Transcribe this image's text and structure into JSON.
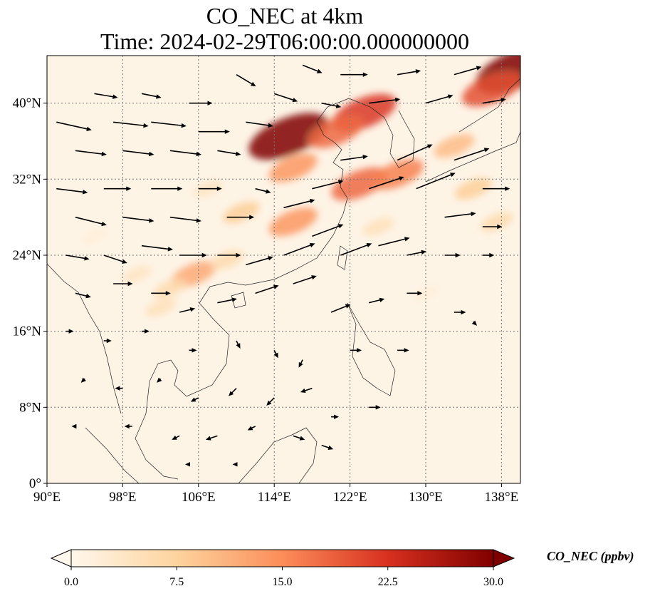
{
  "chart_data": {
    "type": "heatmap",
    "title": "CO_NEC at 4km",
    "subtitle": "Time: 2024-02-29T06:00:00.000000000",
    "variable": "CO_NEC",
    "colorbar_label": "CO_NEC (ppbv)",
    "colormap": "OrRd",
    "colorbar_ticks": [
      "0.0",
      "7.5",
      "15.0",
      "22.5",
      "30.0"
    ],
    "color_range": [
      0,
      30
    ],
    "colorbar_extend": "both",
    "x_range": [
      90,
      140
    ],
    "y_range": [
      0,
      45
    ],
    "x_ticks": [
      {
        "value": 90,
        "label": "90°E"
      },
      {
        "value": 98,
        "label": "98°E"
      },
      {
        "value": 106,
        "label": "106°E"
      },
      {
        "value": 114,
        "label": "114°E"
      },
      {
        "value": 122,
        "label": "122°E"
      },
      {
        "value": 130,
        "label": "130°E"
      },
      {
        "value": 138,
        "label": "138°E"
      }
    ],
    "y_ticks": [
      {
        "value": 0,
        "label": "0°"
      },
      {
        "value": 8,
        "label": "8°N"
      },
      {
        "value": 16,
        "label": "16°N"
      },
      {
        "value": 24,
        "label": "24°N"
      },
      {
        "value": 32,
        "label": "32°N"
      },
      {
        "value": 40,
        "label": "40°N"
      }
    ],
    "grid": true,
    "overlay": "wind vectors",
    "concentration_features": [
      {
        "lon": 115.5,
        "lat": 36.5,
        "value": 30
      },
      {
        "lon": 123.5,
        "lat": 39.0,
        "value": 22
      },
      {
        "lon": 120.5,
        "lat": 37.0,
        "value": 18
      },
      {
        "lon": 116.0,
        "lat": 33.2,
        "value": 14
      },
      {
        "lon": 123.0,
        "lat": 31.5,
        "value": 18
      },
      {
        "lon": 127.0,
        "lat": 32.5,
        "value": 16
      },
      {
        "lon": 116.0,
        "lat": 27.5,
        "value": 14
      },
      {
        "lon": 110.5,
        "lat": 28.5,
        "value": 8
      },
      {
        "lon": 105.5,
        "lat": 22.0,
        "value": 12
      },
      {
        "lon": 103.0,
        "lat": 20.5,
        "value": 6
      },
      {
        "lon": 109.0,
        "lat": 23.5,
        "value": 6
      },
      {
        "lon": 102.0,
        "lat": 18.5,
        "value": 5
      },
      {
        "lon": 99.5,
        "lat": 22.0,
        "value": 4
      },
      {
        "lon": 139.5,
        "lat": 43.5,
        "value": 30
      },
      {
        "lon": 137.0,
        "lat": 41.5,
        "value": 20
      },
      {
        "lon": 133.0,
        "lat": 35.5,
        "value": 10
      },
      {
        "lon": 135.0,
        "lat": 31.0,
        "value": 8
      },
      {
        "lon": 125.0,
        "lat": 27.0,
        "value": 5
      },
      {
        "lon": 137.5,
        "lat": 27.5,
        "value": 6
      },
      {
        "lon": 107.0,
        "lat": 31.0,
        "value": 4
      },
      {
        "lon": 95.0,
        "lat": 26.0,
        "value": 2
      },
      {
        "lon": 130.0,
        "lat": 20.0,
        "value": 2
      }
    ],
    "wind_vectors": [
      {
        "lon": 91,
        "lat": 38,
        "u": 9,
        "v": -2
      },
      {
        "lon": 93,
        "lat": 35,
        "u": 8,
        "v": -1
      },
      {
        "lon": 95,
        "lat": 41,
        "u": 6,
        "v": -1
      },
      {
        "lon": 97,
        "lat": 38,
        "u": 9,
        "v": -1
      },
      {
        "lon": 98,
        "lat": 35,
        "u": 8,
        "v": -1
      },
      {
        "lon": 100,
        "lat": 41,
        "u": 5,
        "v": -1
      },
      {
        "lon": 101,
        "lat": 38,
        "u": 9,
        "v": -1
      },
      {
        "lon": 103,
        "lat": 35,
        "u": 8,
        "v": -1
      },
      {
        "lon": 105,
        "lat": 40,
        "u": 6,
        "v": 0
      },
      {
        "lon": 106,
        "lat": 37,
        "u": 8,
        "v": 0
      },
      {
        "lon": 108,
        "lat": 35,
        "u": 6,
        "v": -1
      },
      {
        "lon": 110,
        "lat": 43,
        "u": 5,
        "v": -3
      },
      {
        "lon": 111,
        "lat": 38,
        "u": 7,
        "v": -1
      },
      {
        "lon": 114,
        "lat": 41,
        "u": 6,
        "v": -2
      },
      {
        "lon": 117,
        "lat": 44,
        "u": 5,
        "v": -2
      },
      {
        "lon": 119,
        "lat": 40,
        "u": 5,
        "v": -1
      },
      {
        "lon": 121,
        "lat": 43,
        "u": 7,
        "v": 0
      },
      {
        "lon": 124,
        "lat": 40,
        "u": 8,
        "v": 1
      },
      {
        "lon": 127,
        "lat": 43,
        "u": 6,
        "v": 1
      },
      {
        "lon": 130,
        "lat": 40,
        "u": 7,
        "v": 2
      },
      {
        "lon": 133,
        "lat": 43,
        "u": 7,
        "v": 2
      },
      {
        "lon": 136,
        "lat": 40,
        "u": 6,
        "v": 1
      },
      {
        "lon": 91,
        "lat": 31,
        "u": 8,
        "v": -1
      },
      {
        "lon": 93,
        "lat": 28,
        "u": 8,
        "v": -2
      },
      {
        "lon": 96,
        "lat": 31,
        "u": 7,
        "v": 0
      },
      {
        "lon": 98,
        "lat": 28,
        "u": 8,
        "v": -1
      },
      {
        "lon": 101,
        "lat": 31,
        "u": 8,
        "v": 0
      },
      {
        "lon": 103,
        "lat": 28,
        "u": 8,
        "v": -1
      },
      {
        "lon": 106,
        "lat": 31,
        "u": 6,
        "v": 0
      },
      {
        "lon": 109,
        "lat": 28,
        "u": 7,
        "v": 0
      },
      {
        "lon": 112,
        "lat": 31,
        "u": 4,
        "v": -1
      },
      {
        "lon": 115,
        "lat": 29,
        "u": 8,
        "v": 2
      },
      {
        "lon": 118,
        "lat": 31,
        "u": 8,
        "v": 2
      },
      {
        "lon": 121,
        "lat": 34,
        "u": 7,
        "v": 1
      },
      {
        "lon": 124,
        "lat": 31,
        "u": 9,
        "v": 3
      },
      {
        "lon": 127,
        "lat": 34,
        "u": 9,
        "v": 4
      },
      {
        "lon": 129,
        "lat": 31,
        "u": 10,
        "v": 4
      },
      {
        "lon": 133,
        "lat": 34,
        "u": 9,
        "v": 3
      },
      {
        "lon": 136,
        "lat": 31,
        "u": 7,
        "v": 0
      },
      {
        "lon": 132,
        "lat": 28,
        "u": 8,
        "v": 1
      },
      {
        "lon": 136,
        "lat": 27,
        "u": 5,
        "v": 0
      },
      {
        "lon": 92,
        "lat": 24,
        "u": 6,
        "v": -1
      },
      {
        "lon": 96,
        "lat": 24,
        "u": 6,
        "v": -2
      },
      {
        "lon": 100,
        "lat": 25,
        "u": 8,
        "v": -1
      },
      {
        "lon": 104,
        "lat": 24,
        "u": 7,
        "v": 0
      },
      {
        "lon": 108,
        "lat": 24,
        "u": 6,
        "v": 0
      },
      {
        "lon": 111,
        "lat": 23,
        "u": 7,
        "v": 2
      },
      {
        "lon": 115,
        "lat": 24,
        "u": 8,
        "v": 3
      },
      {
        "lon": 118,
        "lat": 26,
        "u": 8,
        "v": 3
      },
      {
        "lon": 121,
        "lat": 24,
        "u": 8,
        "v": 3
      },
      {
        "lon": 125,
        "lat": 25,
        "u": 8,
        "v": 2
      },
      {
        "lon": 128,
        "lat": 24,
        "u": 5,
        "v": 1
      },
      {
        "lon": 132,
        "lat": 24,
        "u": 4,
        "v": 0
      },
      {
        "lon": 136,
        "lat": 24,
        "u": 3,
        "v": 0
      },
      {
        "lon": 93,
        "lat": 20,
        "u": 4,
        "v": -1
      },
      {
        "lon": 97,
        "lat": 21,
        "u": 5,
        "v": 0
      },
      {
        "lon": 101,
        "lat": 20,
        "u": 5,
        "v": 0
      },
      {
        "lon": 104,
        "lat": 18,
        "u": 4,
        "v": 1
      },
      {
        "lon": 108,
        "lat": 19,
        "u": 5,
        "v": 1
      },
      {
        "lon": 112,
        "lat": 20,
        "u": 6,
        "v": 2
      },
      {
        "lon": 116,
        "lat": 21,
        "u": 6,
        "v": 2
      },
      {
        "lon": 120,
        "lat": 18,
        "u": 5,
        "v": 2
      },
      {
        "lon": 124,
        "lat": 19,
        "u": 4,
        "v": 1
      },
      {
        "lon": 128,
        "lat": 20,
        "u": 4,
        "v": 0
      },
      {
        "lon": 133,
        "lat": 18,
        "u": 3,
        "v": 0
      },
      {
        "lon": 135,
        "lat": 17,
        "u": 1,
        "v": -1
      },
      {
        "lon": 92,
        "lat": 16,
        "u": 2,
        "v": 0
      },
      {
        "lon": 96,
        "lat": 15,
        "u": 2,
        "v": 0
      },
      {
        "lon": 100,
        "lat": 16,
        "u": 2,
        "v": 0
      },
      {
        "lon": 105,
        "lat": 14,
        "u": 2,
        "v": 0
      },
      {
        "lon": 110,
        "lat": 15,
        "u": 1,
        "v": -2
      },
      {
        "lon": 114,
        "lat": 14,
        "u": 1,
        "v": -2
      },
      {
        "lon": 117,
        "lat": 13,
        "u": -1,
        "v": -2
      },
      {
        "lon": 122,
        "lat": 14,
        "u": 3,
        "v": 0
      },
      {
        "lon": 127,
        "lat": 14,
        "u": 3,
        "v": 0
      },
      {
        "lon": 94,
        "lat": 11,
        "u": -1,
        "v": -1
      },
      {
        "lon": 98,
        "lat": 10,
        "u": -2,
        "v": 0
      },
      {
        "lon": 102,
        "lat": 11,
        "u": -1,
        "v": -1
      },
      {
        "lon": 106,
        "lat": 9,
        "u": -2,
        "v": -1
      },
      {
        "lon": 110,
        "lat": 10,
        "u": -2,
        "v": -2
      },
      {
        "lon": 114,
        "lat": 9,
        "u": -2,
        "v": -2
      },
      {
        "lon": 118,
        "lat": 10,
        "u": -3,
        "v": -1
      },
      {
        "lon": 120,
        "lat": 7,
        "u": 2,
        "v": 0
      },
      {
        "lon": 124,
        "lat": 8,
        "u": 3,
        "v": 0
      },
      {
        "lon": 93,
        "lat": 6,
        "u": -1,
        "v": 0
      },
      {
        "lon": 99,
        "lat": 6,
        "u": -2,
        "v": 0
      },
      {
        "lon": 104,
        "lat": 5,
        "u": -2,
        "v": -1
      },
      {
        "lon": 108,
        "lat": 5,
        "u": -3,
        "v": -1
      },
      {
        "lon": 112,
        "lat": 6,
        "u": -2,
        "v": -1
      },
      {
        "lon": 116,
        "lat": 5,
        "u": 3,
        "v": -1
      },
      {
        "lon": 119,
        "lat": 4,
        "u": 3,
        "v": -1
      },
      {
        "lon": 105,
        "lat": 2,
        "u": -1,
        "v": 0
      },
      {
        "lon": 110,
        "lat": 2,
        "u": -1,
        "v": 0
      }
    ]
  }
}
